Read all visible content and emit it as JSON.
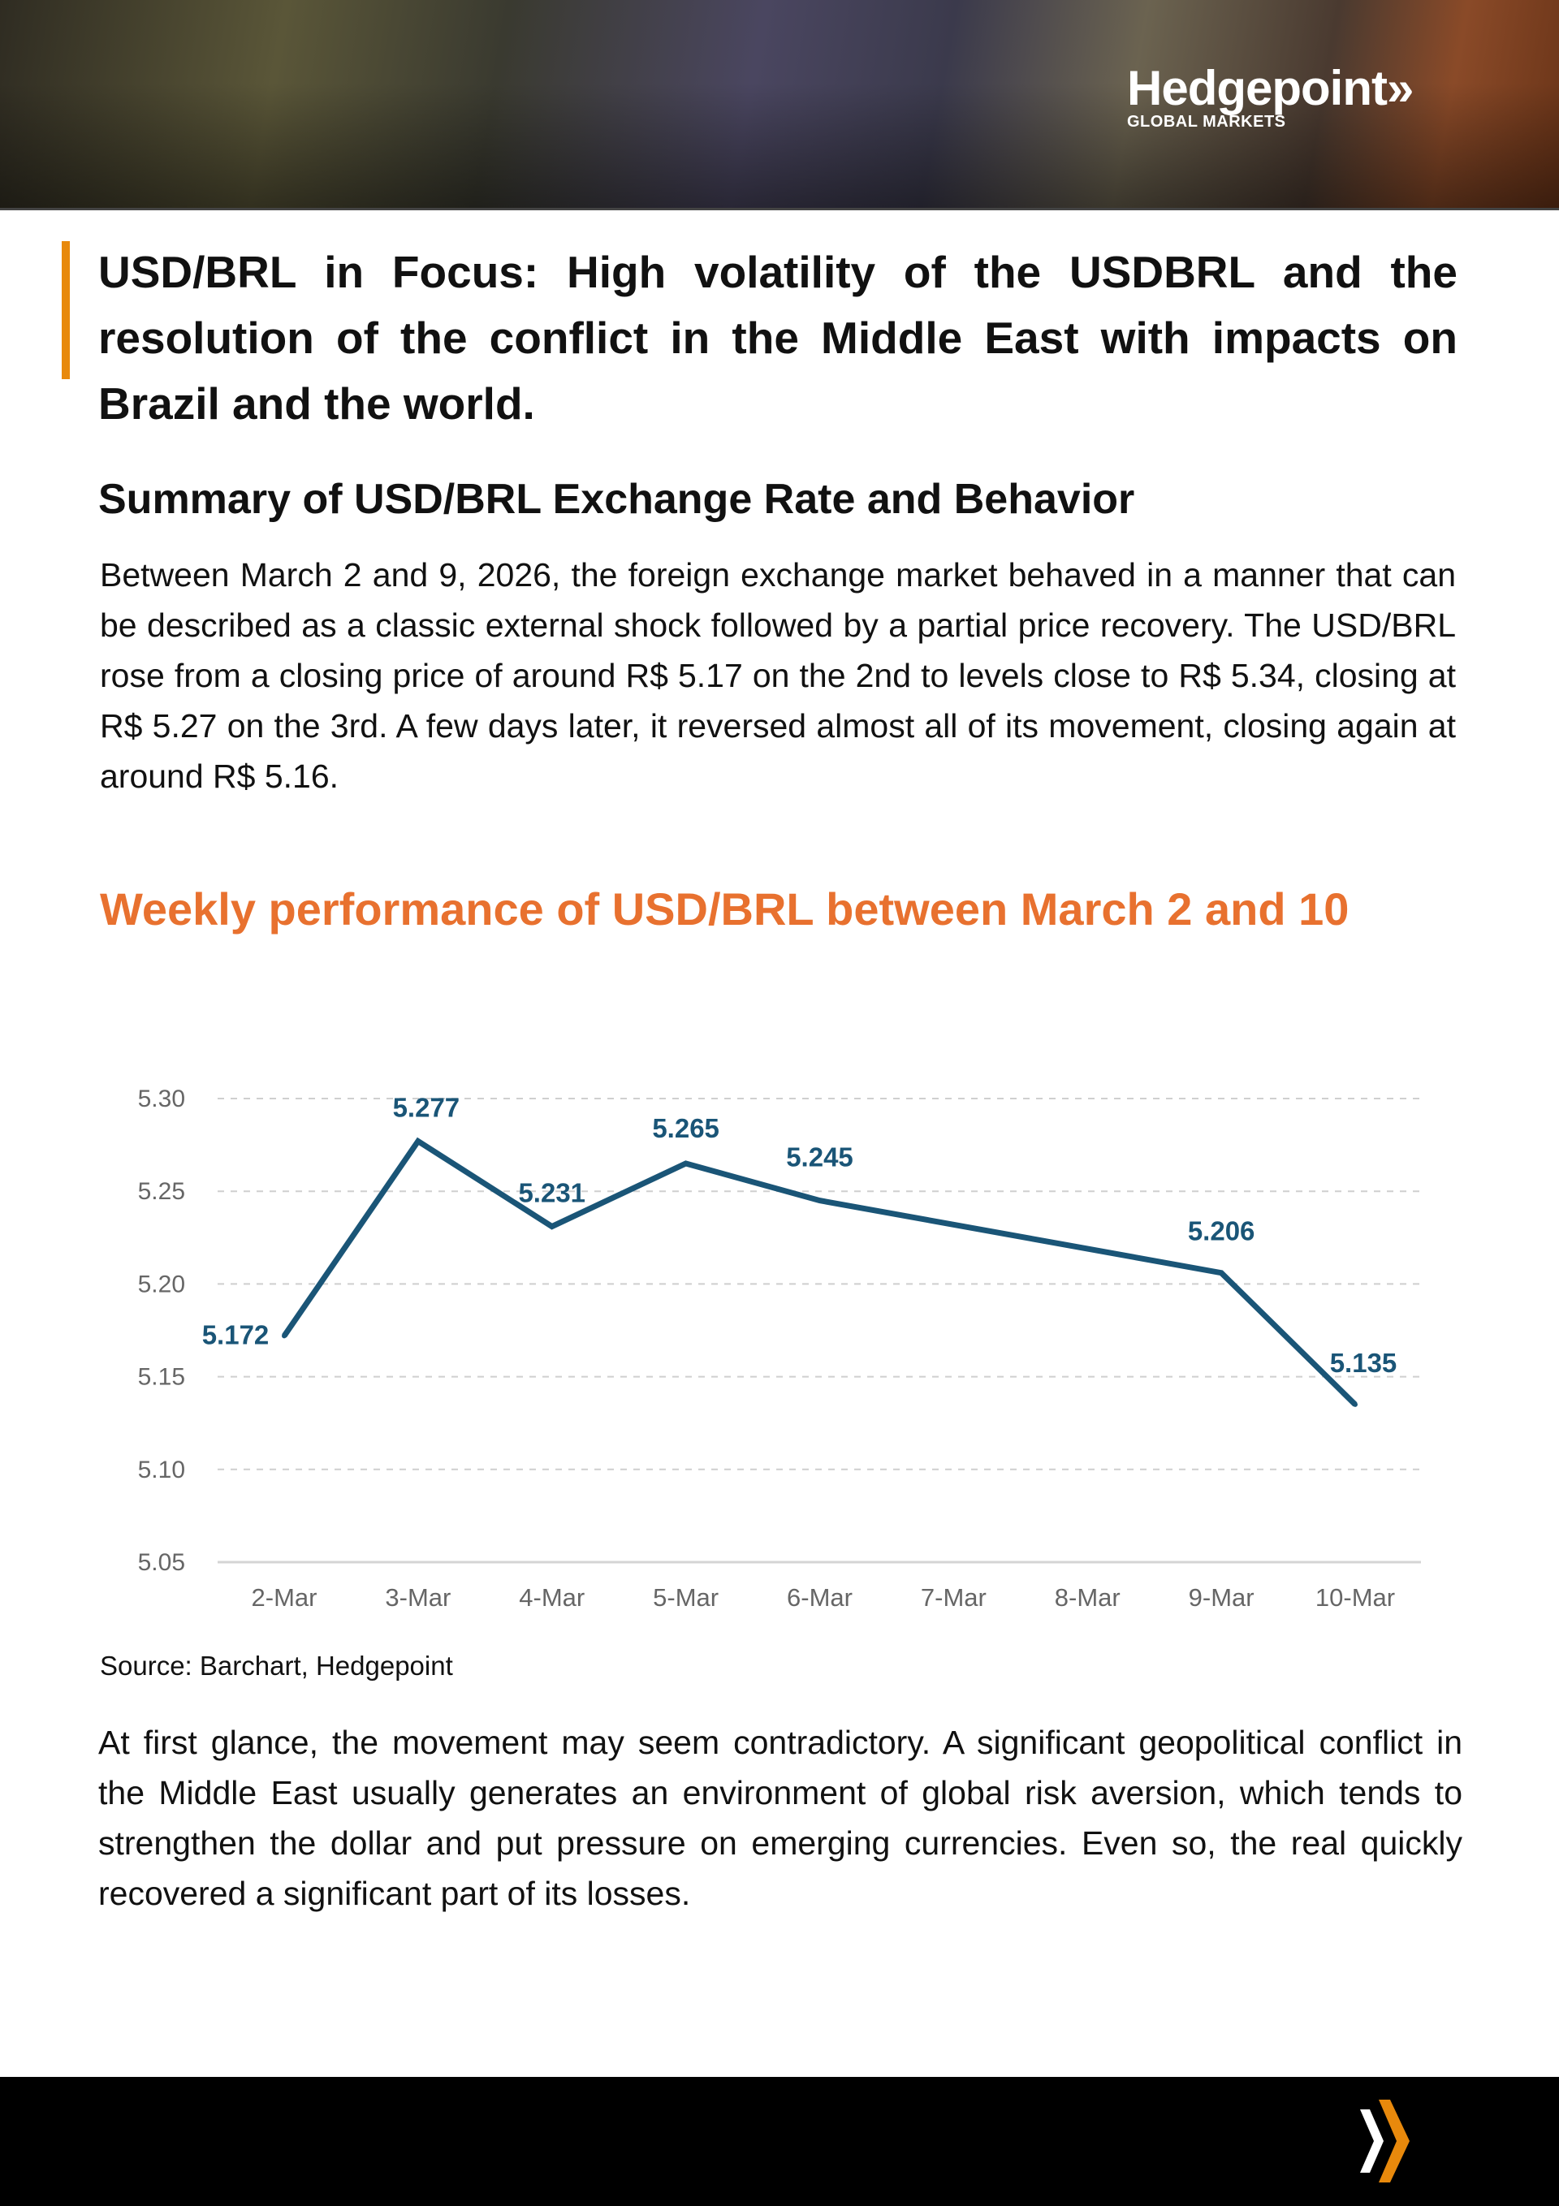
{
  "brand": {
    "name": "Hedgepoint",
    "tagline": "GLOBAL MARKETS",
    "accent": "#e8890c"
  },
  "title": "USD/BRL in Focus: High volatility of the USDBRL and the resolution of the conflict in the Middle East with impacts on Brazil and the world.",
  "summary_heading": "Summary of USD/BRL Exchange Rate and Behavior",
  "summary_text": "Between March 2 and 9, 2026, the foreign exchange market behaved in a manner that can be described as a classic external shock followed by a partial price recovery. The USD/BRL rose from a closing price of around R$ 5.17 on the 2nd to levels close to R$ 5.34, closing at R$ 5.27 on the 3rd. A few days later, it reversed almost all of its movement, closing again at around R$ 5.16.",
  "chart_heading": "Weekly performance of USD/BRL between March 2 and 10",
  "chart_data": {
    "type": "line",
    "title": "Weekly performance of USD/BRL between March 2 and 10",
    "categories": [
      "2-Mar",
      "3-Mar",
      "4-Mar",
      "5-Mar",
      "6-Mar",
      "7-Mar",
      "8-Mar",
      "9-Mar",
      "10-Mar"
    ],
    "series": [
      {
        "name": "USD/BRL",
        "color": "#1a5577",
        "values": [
          5.172,
          5.277,
          5.231,
          5.265,
          5.245,
          null,
          null,
          5.206,
          5.135
        ]
      }
    ],
    "labels": [
      "5.172",
      "5.277",
      "5.231",
      "5.265",
      "5.245",
      null,
      null,
      "5.206",
      "5.135"
    ],
    "ylim": [
      5.05,
      5.3
    ],
    "yticks": [
      "5.05",
      "5.10",
      "5.15",
      "5.20",
      "5.25",
      "5.30"
    ],
    "grid": true,
    "xlabel": "",
    "ylabel": ""
  },
  "source": "Source: Barchart, Hedgepoint",
  "closing_text": "At first glance, the movement may seem contradictory. A significant geopolitical conflict in the Middle East usually generates an environment of global risk aversion, which tends to strengthen the dollar and put pressure on emerging currencies. Even so, the real quickly recovered a significant part of its losses."
}
